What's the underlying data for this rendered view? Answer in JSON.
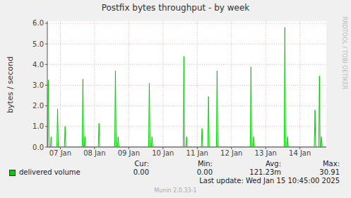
{
  "chart_data": {
    "type": "line",
    "title": "Postfix bytes throughput - by week",
    "y_label": "bytes / second",
    "x": [
      6.62,
      6.63,
      6.65,
      6.67,
      6.71,
      6.73,
      6.75,
      6.9,
      6.92,
      6.94,
      7.12,
      7.14,
      7.16,
      7.64,
      7.66,
      7.68,
      7.7,
      7.72,
      7.74,
      8.11,
      8.13,
      8.15,
      8.59,
      8.61,
      8.63,
      8.67,
      8.69,
      8.71,
      9.58,
      9.6,
      9.62,
      9.66,
      9.68,
      9.7,
      10.59,
      10.61,
      10.63,
      10.67,
      10.69,
      10.71,
      11.12,
      11.14,
      11.16,
      11.31,
      11.33,
      11.35,
      11.56,
      11.58,
      11.6,
      12.55,
      12.57,
      12.59,
      12.63,
      12.65,
      12.67,
      13.54,
      13.56,
      13.58,
      13.62,
      13.64,
      13.66,
      14.42,
      14.44,
      14.46,
      14.55,
      14.57,
      14.59,
      14.61,
      14.63,
      14.65,
      14.77
    ],
    "series": [
      {
        "name": "delivered volume",
        "color": "#00cc00",
        "values": [
          0,
          0,
          3.25,
          0,
          0,
          0.5,
          0,
          0,
          1.85,
          0,
          0,
          1.0,
          0,
          0,
          3.3,
          0,
          0,
          0.5,
          0,
          0,
          1.15,
          0,
          0,
          3.7,
          0,
          0,
          0.5,
          0,
          0,
          3.1,
          0,
          0,
          0.5,
          0,
          0,
          4.4,
          0,
          0,
          0.5,
          0,
          0,
          0.9,
          0,
          0,
          2.45,
          0,
          0,
          3.7,
          0,
          0,
          3.9,
          0,
          0,
          0.5,
          0,
          0,
          5.8,
          0,
          0,
          0.5,
          0,
          0,
          1.8,
          0,
          0,
          3.45,
          0,
          0,
          0.5,
          0,
          0
        ]
      }
    ],
    "xlim": [
      6.62,
      14.77
    ],
    "xticks": [
      {
        "value": 7,
        "label": "07 Jan"
      },
      {
        "value": 8,
        "label": "08 Jan"
      },
      {
        "value": 9,
        "label": "09 Jan"
      },
      {
        "value": 10,
        "label": "10 Jan"
      },
      {
        "value": 11,
        "label": "11 Jan"
      },
      {
        "value": 12,
        "label": "12 Jan"
      },
      {
        "value": 13,
        "label": "13 Jan"
      },
      {
        "value": 14,
        "label": "14 Jan"
      }
    ],
    "ylim": [
      0,
      6.1
    ],
    "yticks": [
      {
        "value": 0,
        "label": "0.0"
      },
      {
        "value": 1,
        "label": "1.0"
      },
      {
        "value": 2,
        "label": "2.0"
      },
      {
        "value": 3,
        "label": "3.0"
      },
      {
        "value": 4,
        "label": "4.0"
      },
      {
        "value": 5,
        "label": "5.0"
      },
      {
        "value": 6,
        "label": "6.0"
      }
    ],
    "grid": true,
    "stats": [
      {
        "label": "Cur:",
        "value": "0.00"
      },
      {
        "label": "Min:",
        "value": "0.00"
      },
      {
        "label": "Avg:",
        "value": "121.23m"
      },
      {
        "label": "Max:",
        "value": "30.91"
      }
    ],
    "annotations": [
      "Last update: Wed Jan 15 10:45:00 2025",
      "Munin 2.0.33-1",
      "RRDTOOL / TOBI OETIKER"
    ]
  }
}
